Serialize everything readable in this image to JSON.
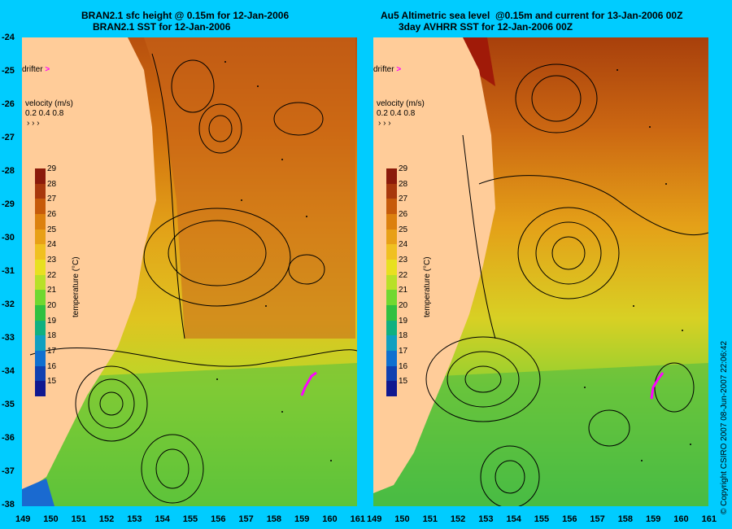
{
  "left_panel": {
    "title_line1": "BRAN2.1 sfc height @ 0.15m for 12-Jan-2006",
    "title_line2": "BRAN2.1 SST for 12-Jan-2006"
  },
  "right_panel": {
    "title_line1": "Au5 Altimetric sea level  @0.15m and current for 13-Jan-2006 00Z",
    "title_line2": "3day AVHRR SST for 12-Jan-2006 00Z"
  },
  "legend": {
    "drifter_label": "drifter",
    "velocity_label": "velocity (m/s)",
    "velocity_scale": "0.2 0.4 0.8",
    "colorbar_title": "temperature (°C)",
    "colorbar_ticks": [
      29,
      28,
      27,
      26,
      25,
      24,
      23,
      22,
      21,
      20,
      19,
      18,
      17,
      16,
      15
    ],
    "colorbar_colors": [
      "#8b1a0a",
      "#a8380c",
      "#c65a0a",
      "#dc800e",
      "#e8a016",
      "#f0c020",
      "#e8e020",
      "#b8e028",
      "#70d830",
      "#30c040",
      "#10b080",
      "#10a0c0",
      "#1070d0",
      "#1040b0",
      "#101890"
    ]
  },
  "axes": {
    "lon_ticks": [
      "149",
      "150",
      "151",
      "152",
      "153",
      "154",
      "155",
      "156",
      "157",
      "158",
      "159",
      "160",
      "161"
    ],
    "lat_ticks": [
      "-24",
      "-25",
      "-26",
      "-27",
      "-28",
      "-29",
      "-30",
      "-31",
      "-32",
      "-33",
      "-34",
      "-35",
      "-36",
      "-37",
      "-38"
    ]
  },
  "colors": {
    "background": "#00ccff",
    "land": "#ffcc99",
    "drifter": "#ff00ff"
  },
  "copyright": "© Copyright CSIRO 2007  08-Jun-2007 22:06:42"
}
